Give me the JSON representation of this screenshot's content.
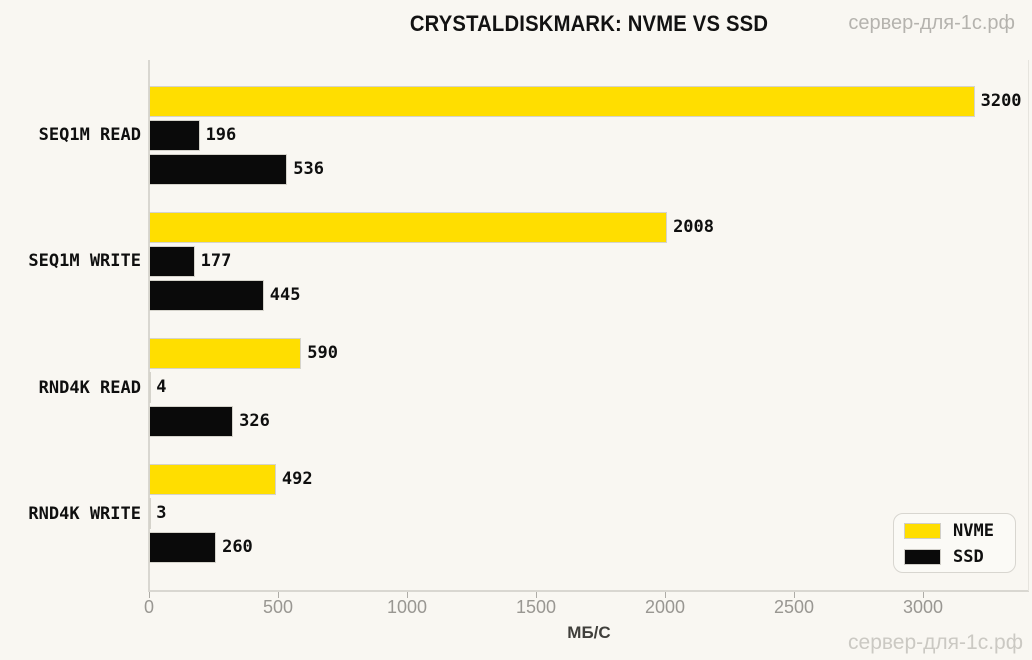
{
  "watermark_top": "сервер-для-1с.рф",
  "watermark_bottom": "сервер-для-1с.рф",
  "colors": {
    "background": "#F9F7F2",
    "nvme_yellow": "#FFDE00",
    "bar_black": "#0A0A0A",
    "bar_edge": "#D5D3CB",
    "spine": "#D9D7D1",
    "tick_label": "#999792",
    "watermark_top": "#B5B3AE",
    "watermark_bottom": "#CBC9C3"
  },
  "chart_data": {
    "type": "bar",
    "orientation": "horizontal",
    "title": "CRYSTALDISKMARK: NVME VS SSD",
    "categories": [
      "SEQ1M READ",
      "SEQ1M WRITE",
      "RND4K READ",
      "RND4K WRITE"
    ],
    "series": [
      {
        "name": "NVME",
        "color": "#FFDE00",
        "in_legend": true,
        "values": [
          3200,
          2008,
          590,
          492
        ]
      },
      {
        "name": "",
        "color": "#0A0A0A",
        "in_legend": false,
        "values": [
          196,
          177,
          4,
          3
        ]
      },
      {
        "name": "SSD",
        "color": "#0A0A0A",
        "in_legend": true,
        "values": [
          536,
          445,
          326,
          260
        ]
      }
    ],
    "value_labels": true,
    "xlabel": "МБ/С",
    "x_ticks": [
      0,
      500,
      1000,
      1500,
      2000,
      2500,
      3000
    ],
    "xlim": [
      0,
      3400
    ],
    "grid": false,
    "legend": {
      "position": "lower right",
      "entries": [
        {
          "label": "NVME",
          "color": "#FFDE00"
        },
        {
          "label": "SSD",
          "color": "#0A0A0A"
        }
      ]
    }
  }
}
